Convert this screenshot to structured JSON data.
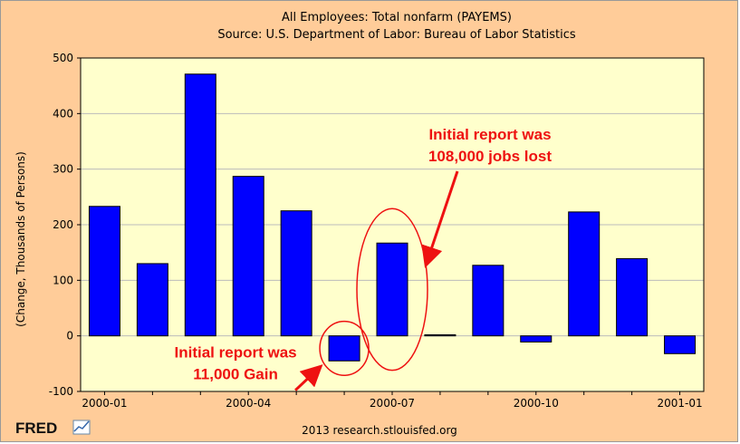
{
  "chart_data": {
    "type": "bar",
    "title": "All Employees: Total nonfarm (PAYEMS)",
    "subtitle": "Source: U.S. Department of Labor: Bureau of Labor Statistics",
    "ylabel": "(Change, Thousands of Persons)",
    "xlabel": "",
    "ylim": [
      -100,
      500
    ],
    "yticks": [
      -100,
      0,
      100,
      200,
      300,
      400,
      500
    ],
    "xticks": [
      "2000-01",
      "2000-04",
      "2000-07",
      "2000-10",
      "2001-01"
    ],
    "categories": [
      "2000-01",
      "2000-02",
      "2000-03",
      "2000-04",
      "2000-05",
      "2000-06",
      "2000-07",
      "2000-08",
      "2000-09",
      "2000-10",
      "2000-11",
      "2000-12",
      "2001-01"
    ],
    "values": [
      233,
      130,
      471,
      287,
      225,
      -45,
      167,
      2,
      127,
      -11,
      223,
      139,
      -32
    ],
    "grid": true,
    "colors": {
      "bar": "#0000ff",
      "plot_bg": "#ffffcc",
      "frame_bg": "#ffcc99",
      "annotation": "#ee1111"
    },
    "annotations": [
      {
        "lines": [
          "Initial report was",
          "108,000 jobs lost"
        ],
        "target": "2000-07"
      },
      {
        "lines": [
          "Initial report was",
          "11,000 Gain"
        ],
        "target": "2000-06"
      }
    ]
  },
  "footer": {
    "logo": "FRED",
    "credit": "2013 research.stlouisfed.org"
  }
}
